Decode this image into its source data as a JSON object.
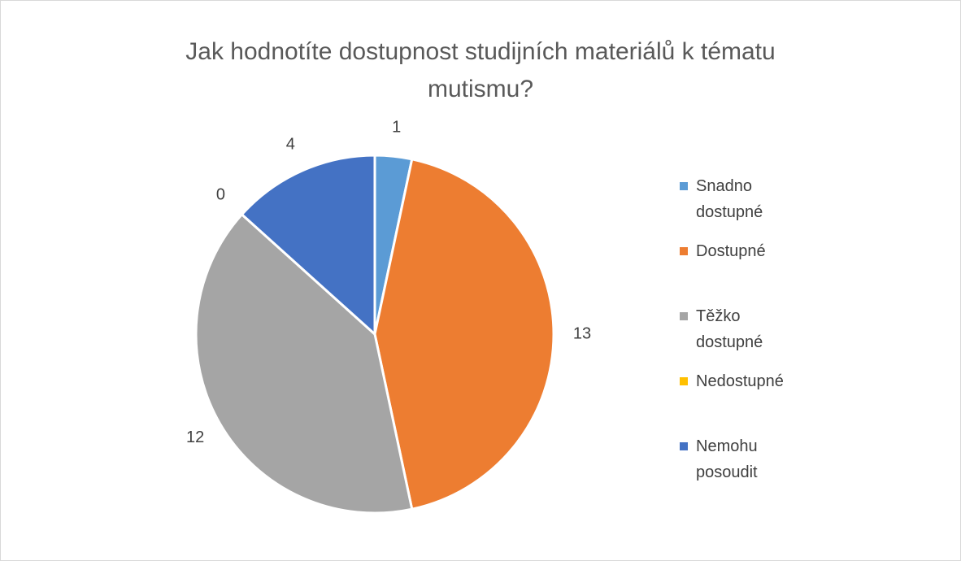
{
  "chart_data": {
    "type": "pie",
    "title": "Jak hodnotíte dostupnost studijních materiálů k tématu mutismu?",
    "categories": [
      "Snadno dostupné",
      "Dostupné",
      "Těžko dostupné",
      "Nedostupné",
      "Nemohu posoudit"
    ],
    "values": [
      1,
      13,
      12,
      0,
      4
    ],
    "colors": [
      "#5b9bd5",
      "#ed7d31",
      "#a5a5a5",
      "#ffc000",
      "#4472c4"
    ],
    "legend": "right"
  }
}
